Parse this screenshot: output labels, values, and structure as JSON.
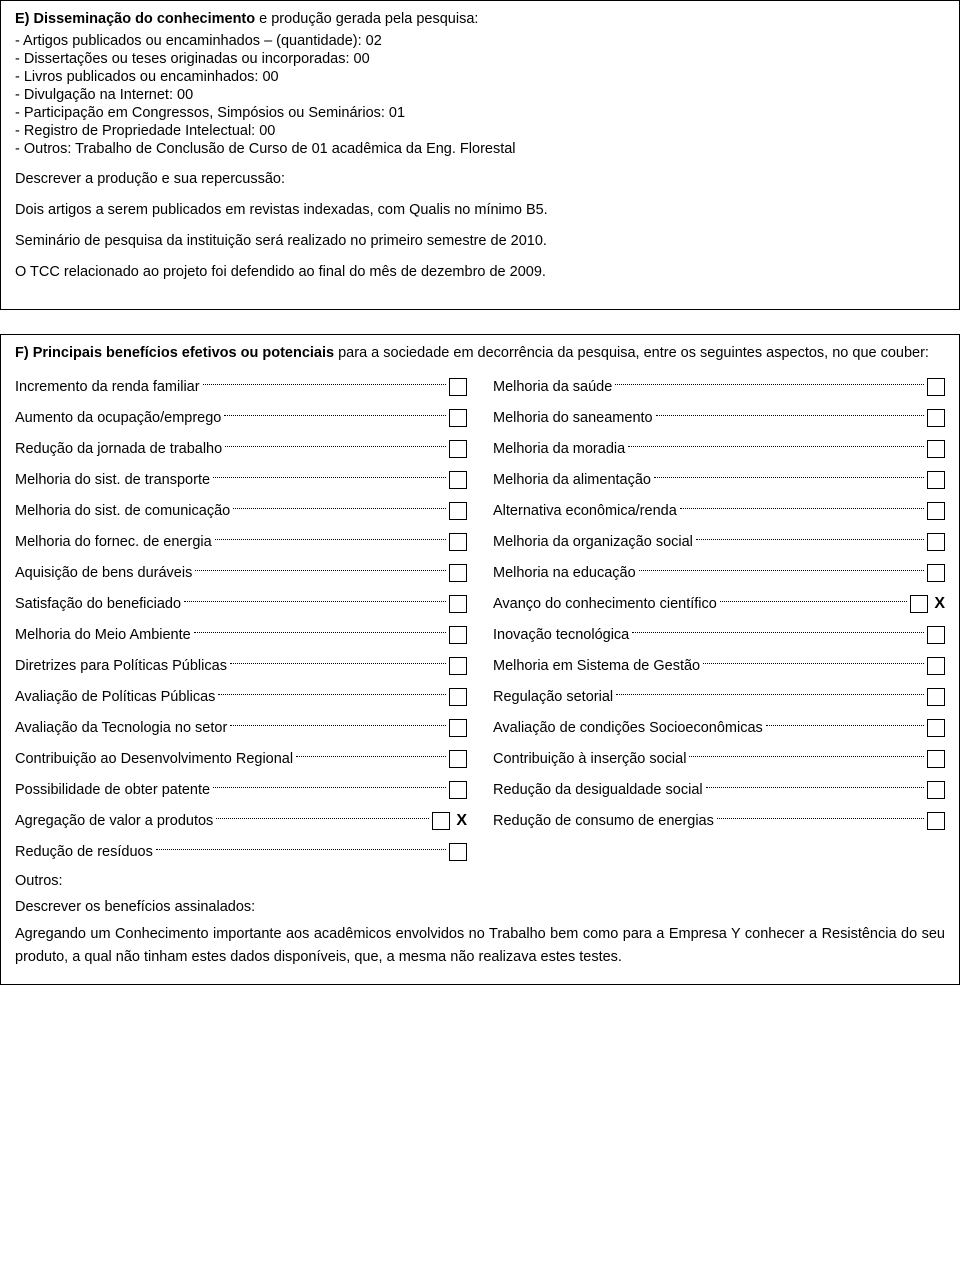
{
  "sectionE": {
    "heading_bold": "E) Disseminação do conhecimento",
    "heading_rest": " e produção gerada pela pesquisa:",
    "bullets": [
      "- Artigos publicados ou encaminhados – (quantidade): 02",
      "- Dissertações ou teses originadas ou incorporadas: 00",
      "- Livros publicados ou encaminhados: 00",
      "- Divulgação na Internet: 00",
      "- Participação em Congressos, Simpósios ou Seminários: 01",
      "- Registro de Propriedade Intelectual: 00",
      "- Outros: Trabalho de Conclusão de Curso de 01 acadêmica da Eng. Florestal"
    ],
    "desc_label": "Descrever a produção e sua repercussão:",
    "p1": "Dois artigos a serem publicados em revistas indexadas, com Qualis no mínimo B5.",
    "p2": "Seminário de pesquisa da instituição será realizado no primeiro semestre de 2010.",
    "p3": "O TCC relacionado ao projeto foi defendido ao final do mês de dezembro de 2009."
  },
  "sectionF": {
    "intro_bold": "F) Principais benefícios efetivos ou potenciais",
    "intro_rest": " para a sociedade em decorrência da pesquisa, entre os seguintes aspectos, no que couber:",
    "left": [
      {
        "label": "Incremento da renda familiar",
        "checked": false
      },
      {
        "label": "Aumento da ocupação/emprego",
        "checked": false
      },
      {
        "label": "Redução da jornada de trabalho",
        "checked": false
      },
      {
        "label": "Melhoria do sist. de transporte",
        "checked": false
      },
      {
        "label": "Melhoria do sist. de comunicação",
        "checked": false
      },
      {
        "label": "Melhoria do fornec. de energia",
        "checked": false
      },
      {
        "label": "Aquisição de bens duráveis",
        "checked": false
      },
      {
        "label": "Satisfação do beneficiado",
        "checked": false
      },
      {
        "label": "Melhoria do Meio Ambiente",
        "checked": false
      },
      {
        "label": "Diretrizes para Políticas Públicas",
        "checked": false
      },
      {
        "label": "Avaliação de Políticas Públicas",
        "checked": false
      },
      {
        "label": "Avaliação da Tecnologia no setor",
        "checked": false
      },
      {
        "label": "Contribuição ao Desenvolvimento Regional",
        "checked": false
      },
      {
        "label": "Possibilidade de obter patente",
        "checked": false
      },
      {
        "label": "Agregação de valor a produtos",
        "checked": true
      },
      {
        "label": "Redução de resíduos",
        "checked": false
      }
    ],
    "right": [
      {
        "label": "Melhoria da saúde",
        "checked": false
      },
      {
        "label": "Melhoria do saneamento",
        "checked": false
      },
      {
        "label": "Melhoria da moradia",
        "checked": false
      },
      {
        "label": "Melhoria da alimentação",
        "checked": false
      },
      {
        "label": "Alternativa econômica/renda",
        "checked": false
      },
      {
        "label": "Melhoria da organização social",
        "checked": false
      },
      {
        "label": "Melhoria na educação",
        "checked": false
      },
      {
        "label": "Avanço do conhecimento científico",
        "checked": true
      },
      {
        "label": "Inovação tecnológica",
        "checked": false
      },
      {
        "label": "Melhoria em Sistema de Gestão",
        "checked": false
      },
      {
        "label": "Regulação setorial",
        "checked": false
      },
      {
        "label": "Avaliação de condições Socioeconômicas",
        "checked": false
      },
      {
        "label": "Contribuição à inserção social",
        "checked": false
      },
      {
        "label": "Redução da desigualdade social",
        "checked": false
      },
      {
        "label": "Redução de consumo de energias",
        "checked": false
      }
    ],
    "outros": "Outros:",
    "desc_head": "Descrever os benefícios assinalados:",
    "desc_body": "Agregando um Conhecimento importante aos acadêmicos envolvidos no Trabalho bem como para a Empresa Y conhecer a Resistência do seu produto, a qual não tinham estes dados disponíveis, que, a mesma não realizava estes testes.",
    "x_mark": "X"
  }
}
